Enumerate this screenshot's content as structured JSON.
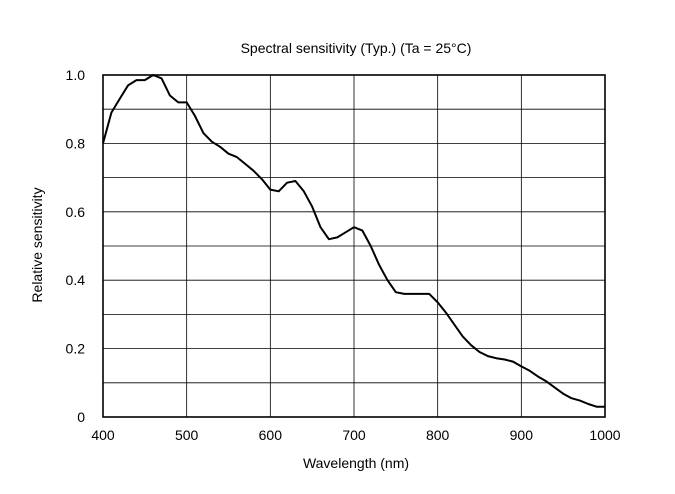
{
  "chart_data": {
    "type": "line",
    "title": "Spectral sensitivity (Typ.) (Ta = 25°C)",
    "xlabel": "Wavelength (nm)",
    "ylabel": "Relative sensitivity",
    "xlim": [
      400,
      1000
    ],
    "ylim": [
      0,
      1.0
    ],
    "x_ticks": [
      400,
      500,
      600,
      700,
      800,
      900,
      1000
    ],
    "y_ticks": [
      0,
      0.2,
      0.4,
      0.6,
      0.8,
      1.0
    ],
    "x_tick_labels": [
      "400",
      "500",
      "600",
      "700",
      "800",
      "900",
      "1000"
    ],
    "y_tick_labels": [
      "0",
      "0.2",
      "0.4",
      "0.6",
      "0.8",
      "1.0"
    ],
    "x_grid_step": 100,
    "y_grid_step": 0.1,
    "grid": true,
    "line_color": "#000000",
    "series": [
      {
        "x": [
          400,
          410,
          420,
          430,
          440,
          450,
          460,
          470,
          480,
          490,
          500,
          510,
          520,
          530,
          540,
          550,
          560,
          570,
          580,
          590,
          600,
          610,
          620,
          630,
          640,
          650,
          660,
          670,
          680,
          690,
          700,
          710,
          720,
          730,
          740,
          750,
          760,
          770,
          780,
          790,
          800,
          810,
          820,
          830,
          840,
          850,
          860,
          870,
          880,
          890,
          900,
          910,
          920,
          930,
          940,
          950,
          960,
          970,
          980,
          990,
          1000
        ],
        "y": [
          0.8,
          0.89,
          0.93,
          0.97,
          0.985,
          0.985,
          1.0,
          0.99,
          0.94,
          0.92,
          0.92,
          0.88,
          0.83,
          0.805,
          0.79,
          0.77,
          0.76,
          0.74,
          0.72,
          0.695,
          0.665,
          0.66,
          0.685,
          0.69,
          0.66,
          0.615,
          0.555,
          0.52,
          0.525,
          0.54,
          0.555,
          0.545,
          0.5,
          0.445,
          0.4,
          0.365,
          0.36,
          0.36,
          0.36,
          0.36,
          0.335,
          0.305,
          0.27,
          0.235,
          0.21,
          0.19,
          0.178,
          0.172,
          0.168,
          0.162,
          0.148,
          0.135,
          0.118,
          0.104,
          0.086,
          0.068,
          0.055,
          0.048,
          0.038,
          0.03,
          0.03
        ]
      }
    ]
  }
}
